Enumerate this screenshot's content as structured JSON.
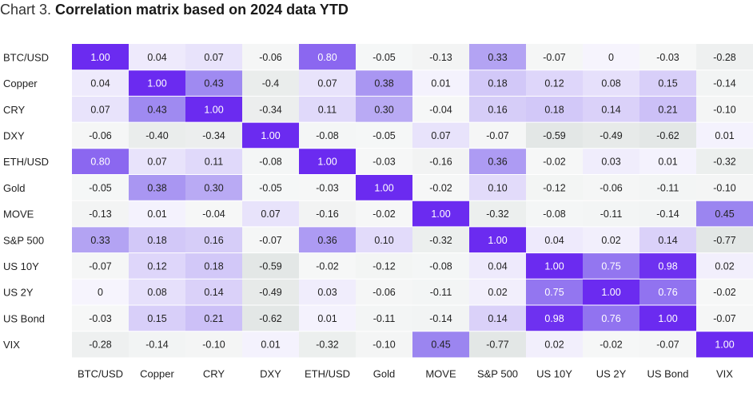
{
  "chart_data": {
    "type": "heatmap",
    "title_prefix": "Chart 3.",
    "title": "Correlation matrix based on 2024 data YTD",
    "labels": [
      "BTC/USD",
      "Copper",
      "CRY",
      "DXY",
      "ETH/USD",
      "Gold",
      "MOVE",
      "S&P 500",
      "US 10Y",
      "US 2Y",
      "US Bond",
      "VIX"
    ],
    "values": [
      [
        "1.00",
        "0.04",
        "0.07",
        "-0.06",
        "0.80",
        "-0.05",
        "-0.13",
        "0.33",
        "-0.07",
        "0",
        "-0.03",
        "-0.28"
      ],
      [
        "0.04",
        "1.00",
        "0.43",
        "-0.4",
        "0.07",
        "0.38",
        "0.01",
        "0.18",
        "0.12",
        "0.08",
        "0.15",
        "-0.14"
      ],
      [
        "0.07",
        "0.43",
        "1.00",
        "-0.34",
        "0.11",
        "0.30",
        "-0.04",
        "0.16",
        "0.18",
        "0.14",
        "0.21",
        "-0.10"
      ],
      [
        "-0.06",
        "-0.40",
        "-0.34",
        "1.00",
        "-0.08",
        "-0.05",
        "0.07",
        "-0.07",
        "-0.59",
        "-0.49",
        "-0.62",
        "0.01"
      ],
      [
        "0.80",
        "0.07",
        "0.11",
        "-0.08",
        "1.00",
        "-0.03",
        "-0.16",
        "0.36",
        "-0.02",
        "0.03",
        "0.01",
        "-0.32"
      ],
      [
        "-0.05",
        "0.38",
        "0.30",
        "-0.05",
        "-0.03",
        "1.00",
        "-0.02",
        "0.10",
        "-0.12",
        "-0.06",
        "-0.11",
        "-0.10"
      ],
      [
        "-0.13",
        "0.01",
        "-0.04",
        "0.07",
        "-0.16",
        "-0.02",
        "1.00",
        "-0.32",
        "-0.08",
        "-0.11",
        "-0.14",
        "0.45"
      ],
      [
        "0.33",
        "0.18",
        "0.16",
        "-0.07",
        "0.36",
        "0.10",
        "-0.32",
        "1.00",
        "0.04",
        "0.02",
        "0.14",
        "-0.77"
      ],
      [
        "-0.07",
        "0.12",
        "0.18",
        "-0.59",
        "-0.02",
        "-0.12",
        "-0.08",
        "0.04",
        "1.00",
        "0.75",
        "0.98",
        "0.02"
      ],
      [
        "0",
        "0.08",
        "0.14",
        "-0.49",
        "0.03",
        "-0.06",
        "-0.11",
        "0.02",
        "0.75",
        "1.00",
        "0.76",
        "-0.02"
      ],
      [
        "-0.03",
        "0.15",
        "0.21",
        "-0.62",
        "0.01",
        "-0.11",
        "-0.14",
        "0.14",
        "0.98",
        "0.76",
        "1.00",
        "-0.07"
      ],
      [
        "-0.28",
        "-0.14",
        "-0.10",
        "0.01",
        "-0.32",
        "-0.10",
        "0.45",
        "-0.77",
        "0.02",
        "-0.02",
        "-0.07",
        "1.00"
      ]
    ],
    "value_range": [
      -1,
      1
    ],
    "colors": {
      "high": "#6b2bf0",
      "mid_high": "#9b85f0",
      "low_positive": "#f6f4fd",
      "negative": "#e3e7e6",
      "text_dark": "#222222",
      "text_light": "#ffffff"
    }
  }
}
